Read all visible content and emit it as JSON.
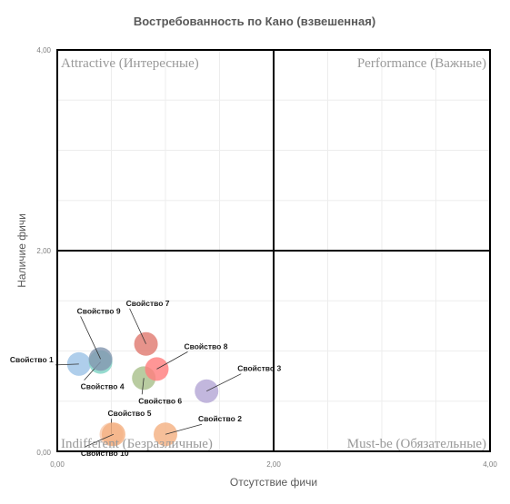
{
  "chart_data": {
    "type": "scatter",
    "title": "Востребованность по Кано (взвешенная)",
    "xlabel": "Отсутствие фичи",
    "ylabel": "Наличие фичи",
    "xlim": [
      0,
      4
    ],
    "ylim": [
      0,
      4
    ],
    "x_ticks": [
      "0,00",
      "2,00",
      "4,00"
    ],
    "y_ticks": [
      "0,00",
      "2,00",
      "4,00"
    ],
    "grid": true,
    "quadrants": {
      "top_left": "Attractive (Интересные)",
      "top_right": "Performance (Важные)",
      "bottom_left": "Indifferent (Безразличные)",
      "bottom_right": "Must-be (Обязательные)"
    },
    "points": [
      {
        "label": "Свойство 1",
        "x": 0.2,
        "y": 0.87,
        "color": "#9dc3e6"
      },
      {
        "label": "Свойство 2",
        "x": 1.0,
        "y": 0.17,
        "color": "#f4b183"
      },
      {
        "label": "Свойство 3",
        "x": 1.38,
        "y": 0.6,
        "color": "#b4a7d6"
      },
      {
        "label": "Свойство 4",
        "x": 0.4,
        "y": 0.89,
        "color": "#7fd3c5"
      },
      {
        "label": "Свойство 5",
        "x": 0.5,
        "y": 0.17,
        "color": "#f8cbad"
      },
      {
        "label": "Свойство 6",
        "x": 0.8,
        "y": 0.73,
        "color": "#a9c18c"
      },
      {
        "label": "Свойство 7",
        "x": 0.82,
        "y": 1.07,
        "color": "#e07b72"
      },
      {
        "label": "Свойство 8",
        "x": 0.92,
        "y": 0.82,
        "color": "#ff7f7f"
      },
      {
        "label": "Свойство 9",
        "x": 0.4,
        "y": 0.92,
        "color": "#8497b0"
      },
      {
        "label": "Свойство 10",
        "x": 0.52,
        "y": 0.17,
        "color": "#f4b183"
      }
    ]
  }
}
